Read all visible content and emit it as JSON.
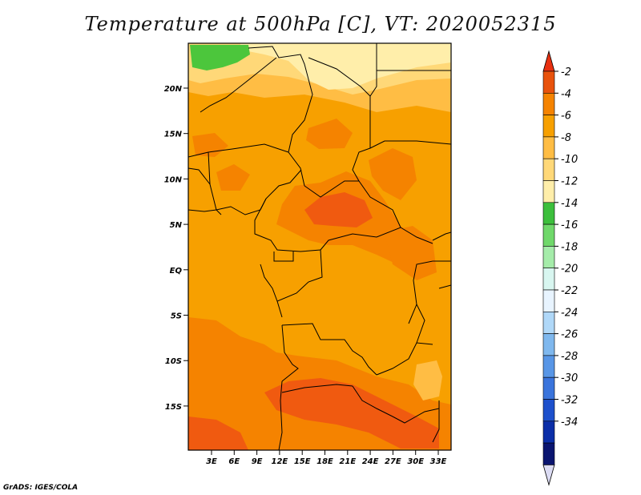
{
  "title": "Temperature at 500hPa [C], VT: 2020052315",
  "credit": "GrADS: IGES/COLA",
  "map": {
    "lat_ticks": [
      "20N",
      "15N",
      "10N",
      "5N",
      "EQ",
      "5S",
      "10S",
      "15S"
    ],
    "lon_ticks": [
      "3E",
      "6E",
      "9E",
      "12E",
      "15E",
      "18E",
      "21E",
      "24E",
      "27E",
      "30E",
      "33E"
    ],
    "colors": {
      "base": "#f7a000",
      "warm_band": "#f58300",
      "hot_core": "#f05a10",
      "cool_band": "#ffbd44",
      "cooler": "#ffd878",
      "coolest": "#ffeeaa",
      "green": "#4cc63c"
    }
  },
  "colorbar": {
    "labels": [
      "-2",
      "-4",
      "-6",
      "-8",
      "-10",
      "-12",
      "-14",
      "-16",
      "-18",
      "-20",
      "-22",
      "-24",
      "-26",
      "-28",
      "-30",
      "-32",
      "-34"
    ],
    "colors": [
      "#e8520c",
      "#f58300",
      "#f7a000",
      "#ffbd44",
      "#ffd878",
      "#ffeeaa",
      "#3cbf3c",
      "#6fd86a",
      "#a5ecaa",
      "#d8f6f0",
      "#e8f4ff",
      "#b0d8f8",
      "#7fb8ee",
      "#5896e6",
      "#3a74dc",
      "#1d50cc",
      "#0b2ea8",
      "#0a1570"
    ],
    "top_arrow_color": "#e83010",
    "bottom_arrow_color": "#dcdcf4"
  }
}
